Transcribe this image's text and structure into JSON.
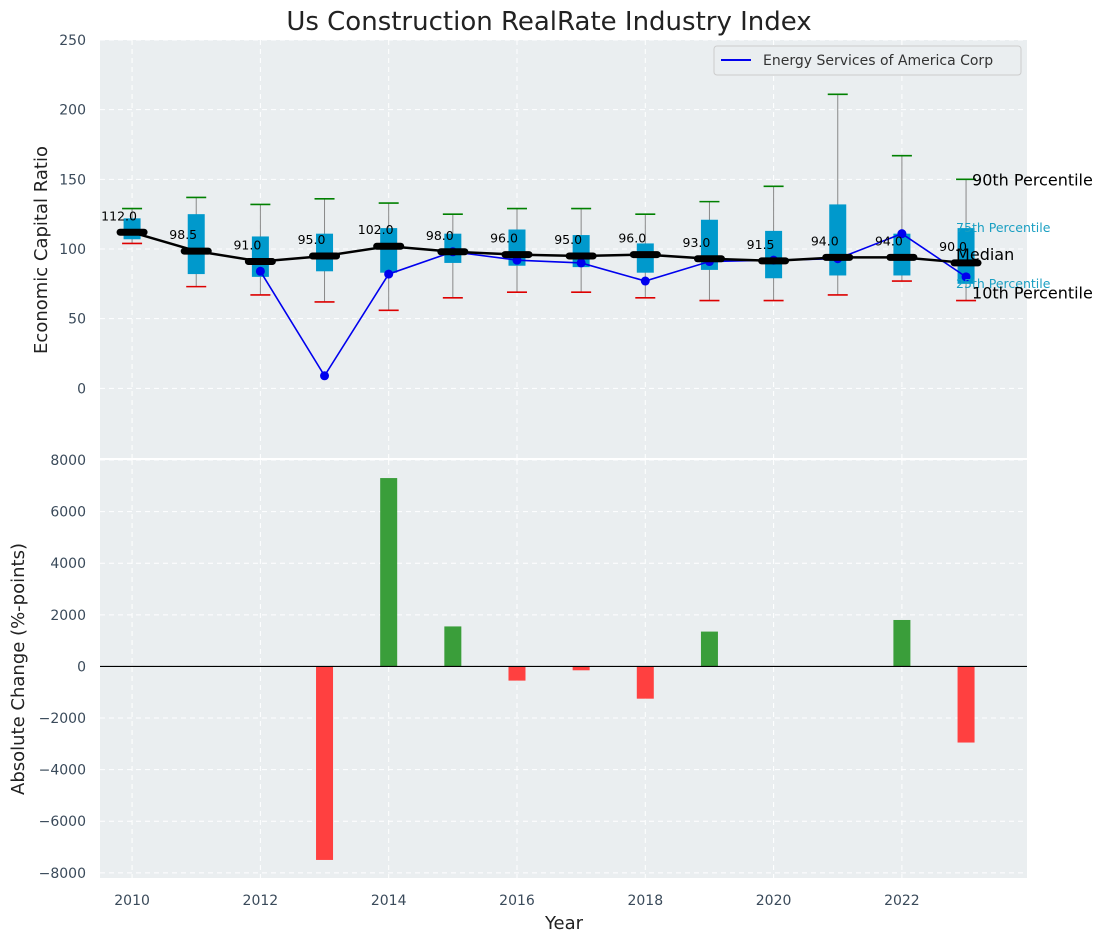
{
  "chart_data": {
    "title": "Us Construction RealRate Industry Index",
    "xlabel": "Year",
    "top": {
      "type": "box",
      "ylabel": "Economic Capital Ratio",
      "ylim": [
        -50,
        250
      ],
      "yticks": [
        0,
        50,
        100,
        150,
        200,
        250
      ],
      "years": [
        2010,
        2011,
        2012,
        2013,
        2014,
        2015,
        2016,
        2017,
        2018,
        2019,
        2020,
        2021,
        2022,
        2023
      ],
      "p10": [
        104,
        73,
        67,
        62,
        56,
        65,
        69,
        69,
        65,
        63,
        63,
        67,
        77,
        63
      ],
      "p25": [
        107,
        82,
        80,
        84,
        83,
        90,
        88,
        87,
        83,
        85,
        79,
        81,
        81,
        75
      ],
      "median": [
        112.0,
        98.5,
        91.0,
        95.0,
        102.0,
        98.0,
        96.0,
        95.0,
        96.0,
        93.0,
        91.5,
        94.0,
        94.0,
        90.0
      ],
      "median_labels": [
        "112.0",
        "98.5",
        "91.0",
        "95.0",
        "102.0",
        "98.0",
        "96.0",
        "95.0",
        "96.0",
        "93.0",
        "91.5",
        "94.0",
        "94.0",
        "90.0"
      ],
      "p75": [
        122,
        125,
        109,
        111,
        115,
        111,
        114,
        110,
        104,
        121,
        113,
        132,
        111,
        115
      ],
      "p90": [
        129,
        137,
        132,
        136,
        133,
        125,
        129,
        129,
        125,
        134,
        145,
        211,
        167,
        150
      ],
      "company": {
        "name": "Energy Services of America Corp",
        "years": [
          2012,
          2013,
          2014,
          2015,
          2016,
          2017,
          2018,
          2019,
          2020,
          2021,
          2022,
          2023
        ],
        "values": [
          84,
          9,
          82,
          98,
          92,
          90,
          77,
          91,
          92,
          93,
          111,
          80
        ],
        "color": "#0000ee"
      },
      "annotations": {
        "p90": "90th Percentile",
        "p75": "75th Percentile",
        "median": "Median",
        "p25": "25th Percentile",
        "p10": "10th Percentile"
      },
      "colors": {
        "box": "#0099cc",
        "median_line": "#000000",
        "p90_cap": "#008000",
        "p10_cap": "#dd0000",
        "whisker": "#888888"
      }
    },
    "bottom": {
      "type": "bar",
      "ylabel": "Absolute Change (%-points)",
      "ylim": [
        -8200,
        8000
      ],
      "yticks": [
        -8000,
        -6000,
        -4000,
        -2000,
        0,
        2000,
        4000,
        6000,
        8000
      ],
      "ytick_labels": [
        "−8000",
        "−6000",
        "−4000",
        "−2000",
        "0",
        "2000",
        "4000",
        "6000",
        "8000"
      ],
      "years": [
        2013,
        2014,
        2015,
        2016,
        2017,
        2018,
        2019,
        2022,
        2023
      ],
      "values": [
        -7500,
        7300,
        1550,
        -550,
        -150,
        -1250,
        1350,
        1800,
        -2950
      ],
      "colors": {
        "positive": "#3a9e3a",
        "negative": "#ff4040"
      }
    },
    "xticks": [
      2010,
      2012,
      2014,
      2016,
      2018,
      2020,
      2022
    ],
    "xlim": [
      2009.5,
      2023.95
    ],
    "style": {
      "panel_bg": "#eaeef0",
      "grid": "#ffffff"
    }
  }
}
